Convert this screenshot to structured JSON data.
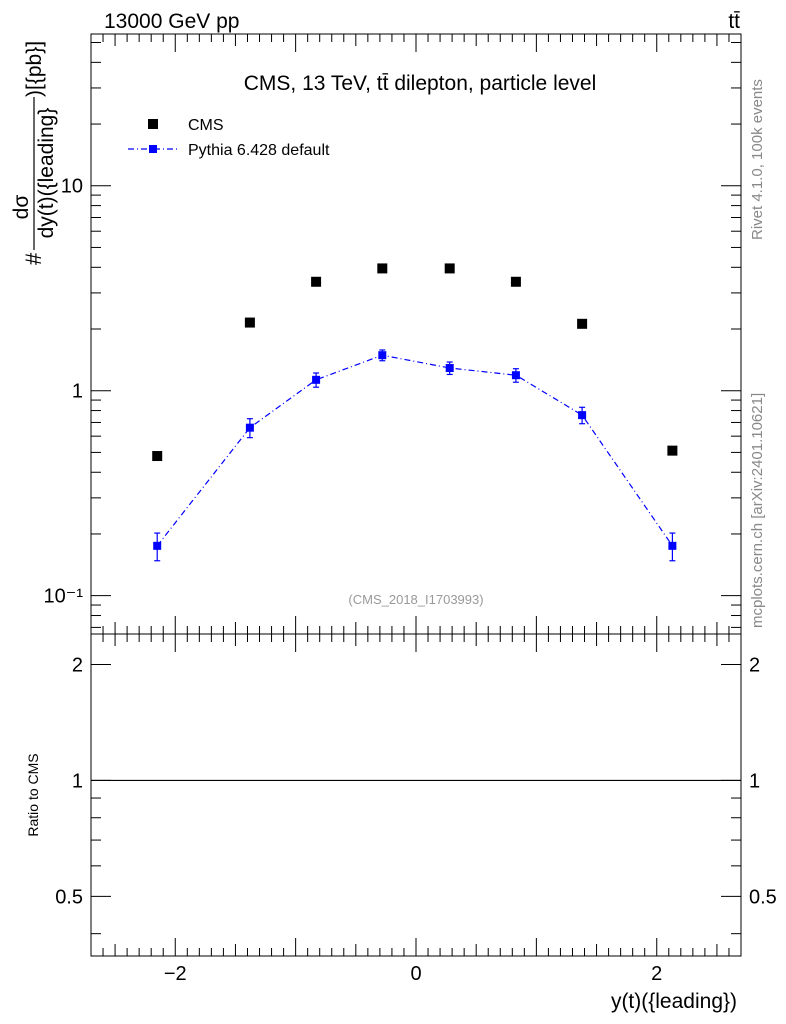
{
  "header": {
    "energy_label": "13000 GeV pp",
    "process_label": "tt̄"
  },
  "side_labels": {
    "rivet": "Rivet 4.1.0,  100k events",
    "mcplots": "mcplots.cern.ch [arXiv:2401.10621]"
  },
  "colors": {
    "data": "#000000",
    "mc": "#0000ff",
    "watermark": "#999999",
    "side_text": "#888888"
  },
  "chart_data": [
    {
      "type": "scatter",
      "title": "CMS, 13 TeV, tt̄ dilepton, particle level",
      "ylabel": "#dσ/dy(t)({leading})[{pb}]",
      "ylabel_parts": {
        "hash": "#",
        "numerator": "dσ",
        "denominator": "dy(t)({leading}",
        "suffix": ")[{pb}]"
      },
      "xlabel": "",
      "xlim": [
        -2.7,
        2.7
      ],
      "ylim": [
        0.065,
        55
      ],
      "yscale": "log",
      "x_tick_labels": [
        "−2",
        "0",
        "2"
      ],
      "y_tick_labels": [
        "10⁻¹",
        "1",
        "10"
      ],
      "watermark": "(CMS_2018_I1703993)",
      "legend_position": "top-left",
      "series": [
        {
          "name": "CMS",
          "x": [
            -2.15,
            -1.38,
            -0.83,
            -0.28,
            0.28,
            0.83,
            1.38,
            2.13
          ],
          "y": [
            0.48,
            2.15,
            3.4,
            3.95,
            3.95,
            3.4,
            2.12,
            0.51
          ]
        },
        {
          "name": "Pythia 6.428 default",
          "x": [
            -2.15,
            -1.38,
            -0.83,
            -0.28,
            0.28,
            0.83,
            1.38,
            2.13
          ],
          "y": [
            0.175,
            0.66,
            1.13,
            1.49,
            1.29,
            1.19,
            0.76,
            0.175
          ],
          "yerr": [
            0.027,
            0.07,
            0.09,
            0.09,
            0.09,
            0.09,
            0.07,
            0.027
          ]
        }
      ]
    },
    {
      "type": "line",
      "xlabel": "y(t)({leading})",
      "ylabel": "Ratio to CMS",
      "xlim": [
        -2.7,
        2.7
      ],
      "ylim": [
        0.35,
        2.4
      ],
      "yscale": "log",
      "x_tick_labels": [
        "−2",
        "0",
        "2"
      ],
      "y_tick_labels": [
        "0.5",
        "1",
        "2"
      ],
      "reference_line": 1
    }
  ]
}
